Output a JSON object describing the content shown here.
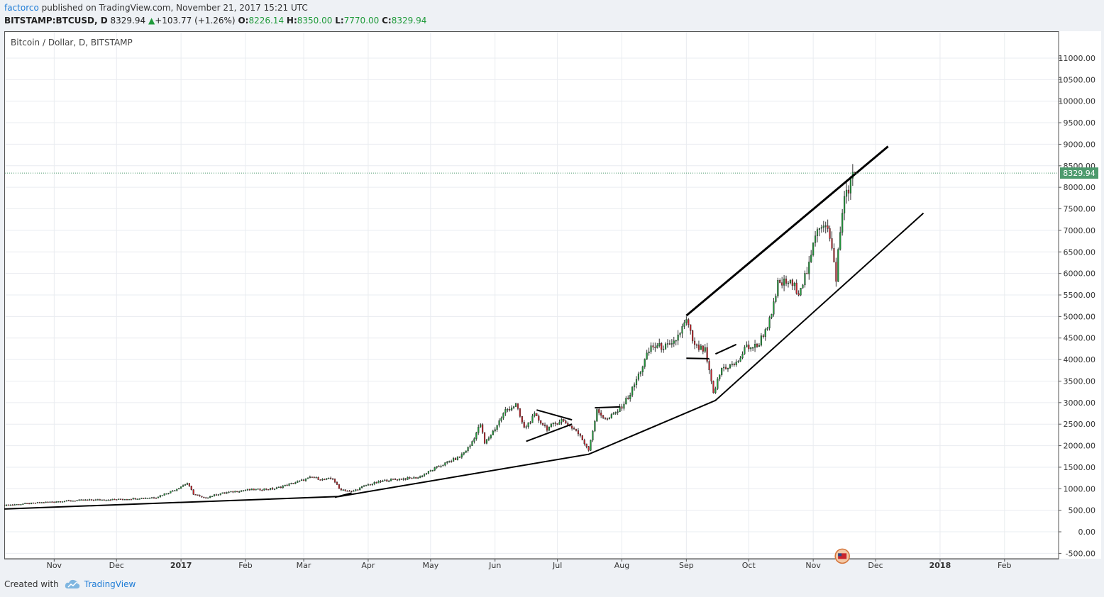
{
  "header": {
    "author": "factorco",
    "published_text": "published on TradingView.com, November 21, 2017 15:21 UTC",
    "symbol": "BITSTAMP:BTCUSD, D",
    "last": "8329.94",
    "change": "+103.77 (+1.26%)",
    "open_label": "O:",
    "open": "8226.14",
    "high_label": "H:",
    "high": "8350.00",
    "low_label": "L:",
    "low": "7770.00",
    "close_label": "C:",
    "close": "8329.94"
  },
  "footer": {
    "created_with": "Created with",
    "brand": "TradingView"
  },
  "colors": {
    "up": "#1f9a3a",
    "down": "#c8252c",
    "wick": "#333333",
    "grid": "#e9ecf0",
    "last_price_badge": "#4d9a6d",
    "trendline": "#000000"
  },
  "chart_data": {
    "type": "candlestick",
    "title": "Bitcoin / Dollar, D, BITSTAMP",
    "ylim": [
      -625,
      11625
    ],
    "y_ticks": [
      11000,
      10500,
      10000,
      9500,
      9000,
      8500,
      8000,
      7500,
      7000,
      6500,
      6000,
      5500,
      5000,
      4500,
      4000,
      3500,
      3000,
      2500,
      2000,
      1500,
      1000,
      500,
      0,
      -500
    ],
    "y_tick_labels": [
      "11000.00",
      "10500.00",
      "10000.00",
      "9500.00",
      "9000.00",
      "8500.00",
      "8000.00",
      "7500.00",
      "7000.00",
      "6500.00",
      "6000.00",
      "5500.00",
      "5000.00",
      "4500.00",
      "4000.00",
      "3500.00",
      "3000.00",
      "2500.00",
      "2000.00",
      "1500.00",
      "1000.00",
      "500.00",
      "0.00",
      "-500.00"
    ],
    "x_range": [
      "2016-10-08",
      "2018-02-27"
    ],
    "x_ticks": [
      {
        "date": "2016-11-01",
        "label": "Nov"
      },
      {
        "date": "2016-12-01",
        "label": "Dec"
      },
      {
        "date": "2017-01-01",
        "label": "2017"
      },
      {
        "date": "2017-02-01",
        "label": "Feb"
      },
      {
        "date": "2017-03-01",
        "label": "Mar"
      },
      {
        "date": "2017-04-01",
        "label": "Apr"
      },
      {
        "date": "2017-05-01",
        "label": "May"
      },
      {
        "date": "2017-06-01",
        "label": "Jun"
      },
      {
        "date": "2017-07-01",
        "label": "Jul"
      },
      {
        "date": "2017-08-01",
        "label": "Aug"
      },
      {
        "date": "2017-09-01",
        "label": "Sep"
      },
      {
        "date": "2017-10-01",
        "label": "Oct"
      },
      {
        "date": "2017-11-01",
        "label": "Nov"
      },
      {
        "date": "2017-12-01",
        "label": "Dec"
      },
      {
        "date": "2018-01-01",
        "label": "2018"
      },
      {
        "date": "2018-02-01",
        "label": "Feb"
      }
    ],
    "last_price": 8329.94,
    "last_price_label": "8329.94",
    "close_path": [
      [
        "2016-10-08",
        615
      ],
      [
        "2016-11-01",
        700
      ],
      [
        "2016-11-15",
        735
      ],
      [
        "2016-12-01",
        750
      ],
      [
        "2016-12-20",
        800
      ],
      [
        "2016-12-29",
        975
      ],
      [
        "2017-01-04",
        1130
      ],
      [
        "2017-01-07",
        880
      ],
      [
        "2017-01-12",
        780
      ],
      [
        "2017-01-20",
        890
      ],
      [
        "2017-02-01",
        970
      ],
      [
        "2017-02-15",
        1000
      ],
      [
        "2017-02-28",
        1190
      ],
      [
        "2017-03-05",
        1270
      ],
      [
        "2017-03-10",
        1210
      ],
      [
        "2017-03-15",
        1240
      ],
      [
        "2017-03-18",
        1000
      ],
      [
        "2017-03-24",
        930
      ],
      [
        "2017-03-31",
        1080
      ],
      [
        "2017-04-10",
        1200
      ],
      [
        "2017-04-25",
        1260
      ],
      [
        "2017-05-05",
        1520
      ],
      [
        "2017-05-15",
        1740
      ],
      [
        "2017-05-20",
        2000
      ],
      [
        "2017-05-25",
        2500
      ],
      [
        "2017-05-27",
        2050
      ],
      [
        "2017-06-01",
        2400
      ],
      [
        "2017-06-06",
        2820
      ],
      [
        "2017-06-11",
        2950
      ],
      [
        "2017-06-15",
        2400
      ],
      [
        "2017-06-20",
        2700
      ],
      [
        "2017-06-26",
        2400
      ],
      [
        "2017-07-03",
        2600
      ],
      [
        "2017-07-10",
        2350
      ],
      [
        "2017-07-16",
        1920
      ],
      [
        "2017-07-20",
        2800
      ],
      [
        "2017-07-25",
        2600
      ],
      [
        "2017-07-31",
        2850
      ],
      [
        "2017-08-05",
        3200
      ],
      [
        "2017-08-15",
        4300
      ],
      [
        "2017-08-25",
        4300
      ],
      [
        "2017-09-01",
        4900
      ],
      [
        "2017-09-05",
        4300
      ],
      [
        "2017-09-10",
        4200
      ],
      [
        "2017-09-14",
        3200
      ],
      [
        "2017-09-18",
        3800
      ],
      [
        "2017-09-25",
        3900
      ],
      [
        "2017-09-30",
        4300
      ],
      [
        "2017-10-05",
        4300
      ],
      [
        "2017-10-12",
        5000
      ],
      [
        "2017-10-15",
        5750
      ],
      [
        "2017-10-20",
        5800
      ],
      [
        "2017-10-25",
        5600
      ],
      [
        "2017-10-30",
        6150
      ],
      [
        "2017-11-03",
        7100
      ],
      [
        "2017-11-07",
        7200
      ],
      [
        "2017-11-09",
        6800
      ],
      [
        "2017-11-12",
        5900
      ],
      [
        "2017-11-13",
        6500
      ],
      [
        "2017-11-16",
        7800
      ],
      [
        "2017-11-20",
        8230
      ],
      [
        "2017-11-21",
        8330
      ]
    ],
    "trendlines": [
      [
        [
          "2016-10-08",
          530
        ],
        [
          "2017-03-18",
          820
        ],
        [
          "2017-07-16",
          1800
        ],
        [
          "2017-09-15",
          3050
        ],
        [
          "2017-12-24",
          7400
        ]
      ],
      [
        [
          "2017-03-16",
          800
        ],
        [
          "2017-03-24",
          900
        ]
      ],
      [
        [
          "2017-06-16",
          2100
        ],
        [
          "2017-07-08",
          2500
        ]
      ],
      [
        [
          "2017-06-21",
          2830
        ],
        [
          "2017-07-08",
          2600
        ]
      ],
      [
        [
          "2017-07-19",
          2880
        ],
        [
          "2017-07-31",
          2900
        ]
      ],
      [
        [
          "2017-09-01",
          4030
        ],
        [
          "2017-09-12",
          4020
        ]
      ],
      [
        [
          "2017-09-15",
          4130
        ],
        [
          "2017-09-25",
          4350
        ]
      ],
      [
        [
          "2017-09-01",
          5020
        ],
        [
          "2017-12-07",
          8950
        ]
      ]
    ]
  }
}
